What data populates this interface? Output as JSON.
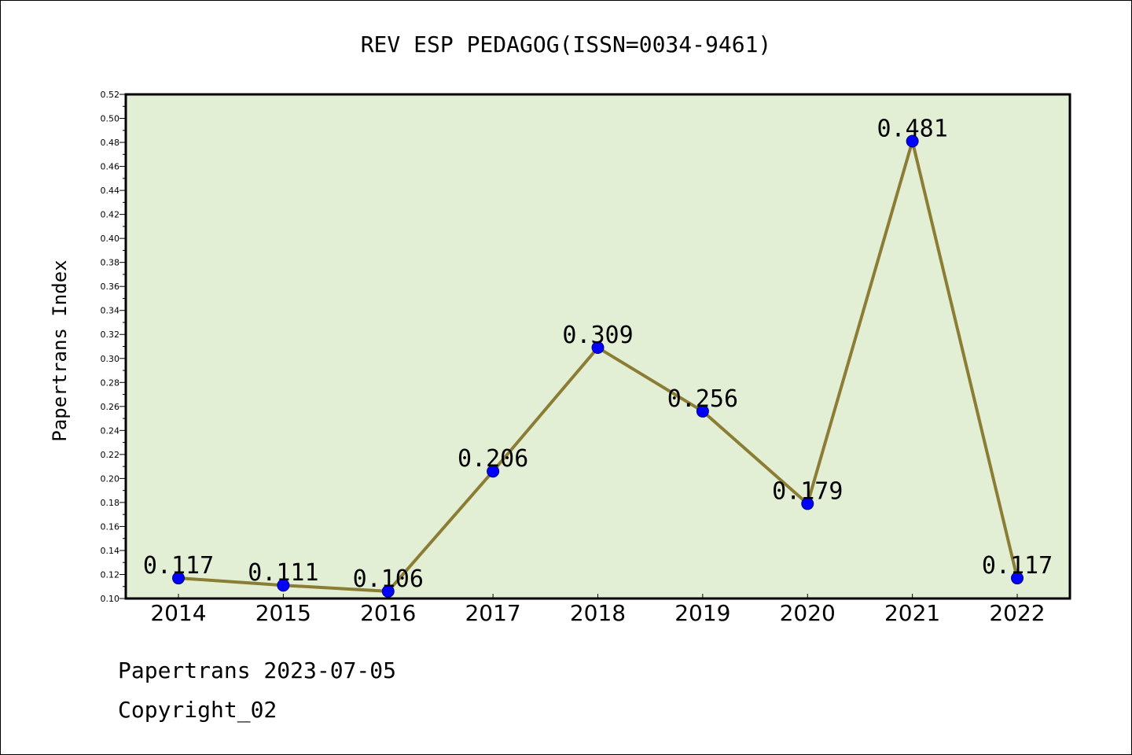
{
  "chart_data": {
    "type": "line",
    "title": "REV ESP PEDAGOG(ISSN=0034-9461)",
    "xlabel": "",
    "ylabel": "Papertrans Index",
    "categories": [
      "2014",
      "2015",
      "2016",
      "2017",
      "2018",
      "2019",
      "2020",
      "2021",
      "2022"
    ],
    "series": [
      {
        "values": [
          0.117,
          0.111,
          0.106,
          0.206,
          0.309,
          0.256,
          0.179,
          0.481,
          0.117
        ],
        "labels": [
          "0.117",
          "0.111",
          "0.106",
          "0.206",
          "0.309",
          "0.256",
          "0.179",
          "0.481",
          "0.117"
        ]
      }
    ],
    "ylim": [
      0.1,
      0.52
    ],
    "yticks": [
      "0.10",
      "0.12",
      "0.14",
      "0.16",
      "0.18",
      "0.20",
      "0.22",
      "0.24",
      "0.26",
      "0.28",
      "0.30",
      "0.32",
      "0.34",
      "0.36",
      "0.38",
      "0.40",
      "0.42",
      "0.44",
      "0.46",
      "0.48",
      "0.50",
      "0.52"
    ],
    "grid": false,
    "legend": "none",
    "colors": {
      "plot_background": "#e2efd5",
      "line": "#8b7d34",
      "marker": "#0000ff",
      "marker_edge": "#000080",
      "axes": "#000000"
    }
  },
  "footer": {
    "line1": "Papertrans 2023-07-05",
    "line2": "Copyright_02"
  }
}
